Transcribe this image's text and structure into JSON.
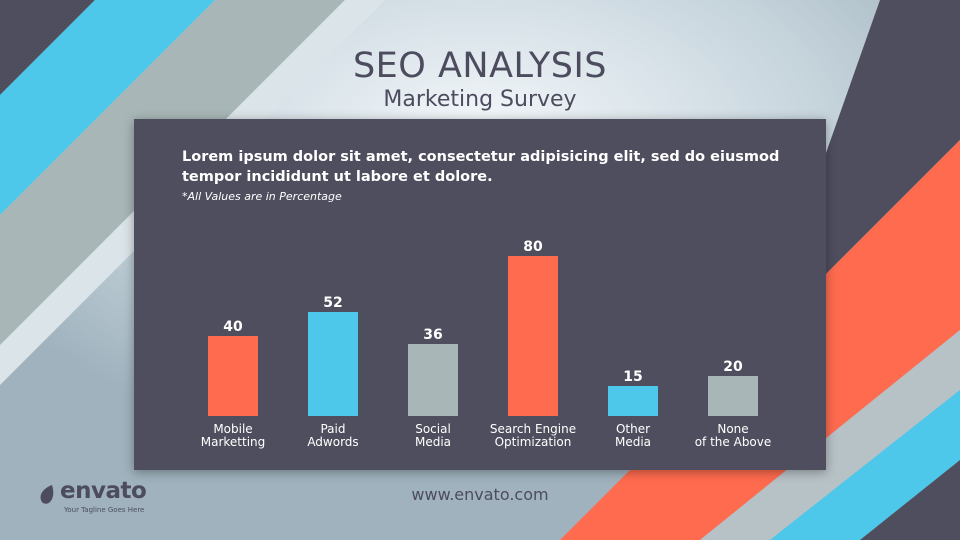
{
  "header": {
    "title": "SEO ANALYSIS",
    "subtitle": "Marketing Survey"
  },
  "panel": {
    "description": "Lorem ipsum dolor sit amet, consectetur adipisicing elit, sed do eiusmod tempor incididunt ut labore et dolore.",
    "note": "*All Values are in Percentage"
  },
  "footer": {
    "url": "www.envato.com",
    "logo_text": "envato",
    "tagline": "Your Tagline Goes Here"
  },
  "colors": {
    "orange": "#fe6b4f",
    "blue": "#4dc8ea",
    "gray": "#a8b6b7",
    "panel": "#4f4e5e",
    "text_dark": "#4d4c5e"
  },
  "chart_data": {
    "type": "bar",
    "categories": [
      [
        "Mobile",
        "Marketting"
      ],
      [
        "Paid",
        "Adwords"
      ],
      [
        "Social",
        "Media"
      ],
      [
        "Search Engine",
        "Optimization"
      ],
      [
        "Other",
        "Media"
      ],
      [
        "None",
        "of the Above"
      ]
    ],
    "values": [
      40,
      52,
      36,
      80,
      15,
      20
    ],
    "bar_colors": [
      "#fe6b4f",
      "#4dc8ea",
      "#a8b6b7",
      "#fe6b4f",
      "#4dc8ea",
      "#a8b6b7"
    ],
    "title": "",
    "xlabel": "",
    "ylabel": "",
    "ylim": [
      0,
      80
    ],
    "grid": false,
    "legend": "none"
  }
}
